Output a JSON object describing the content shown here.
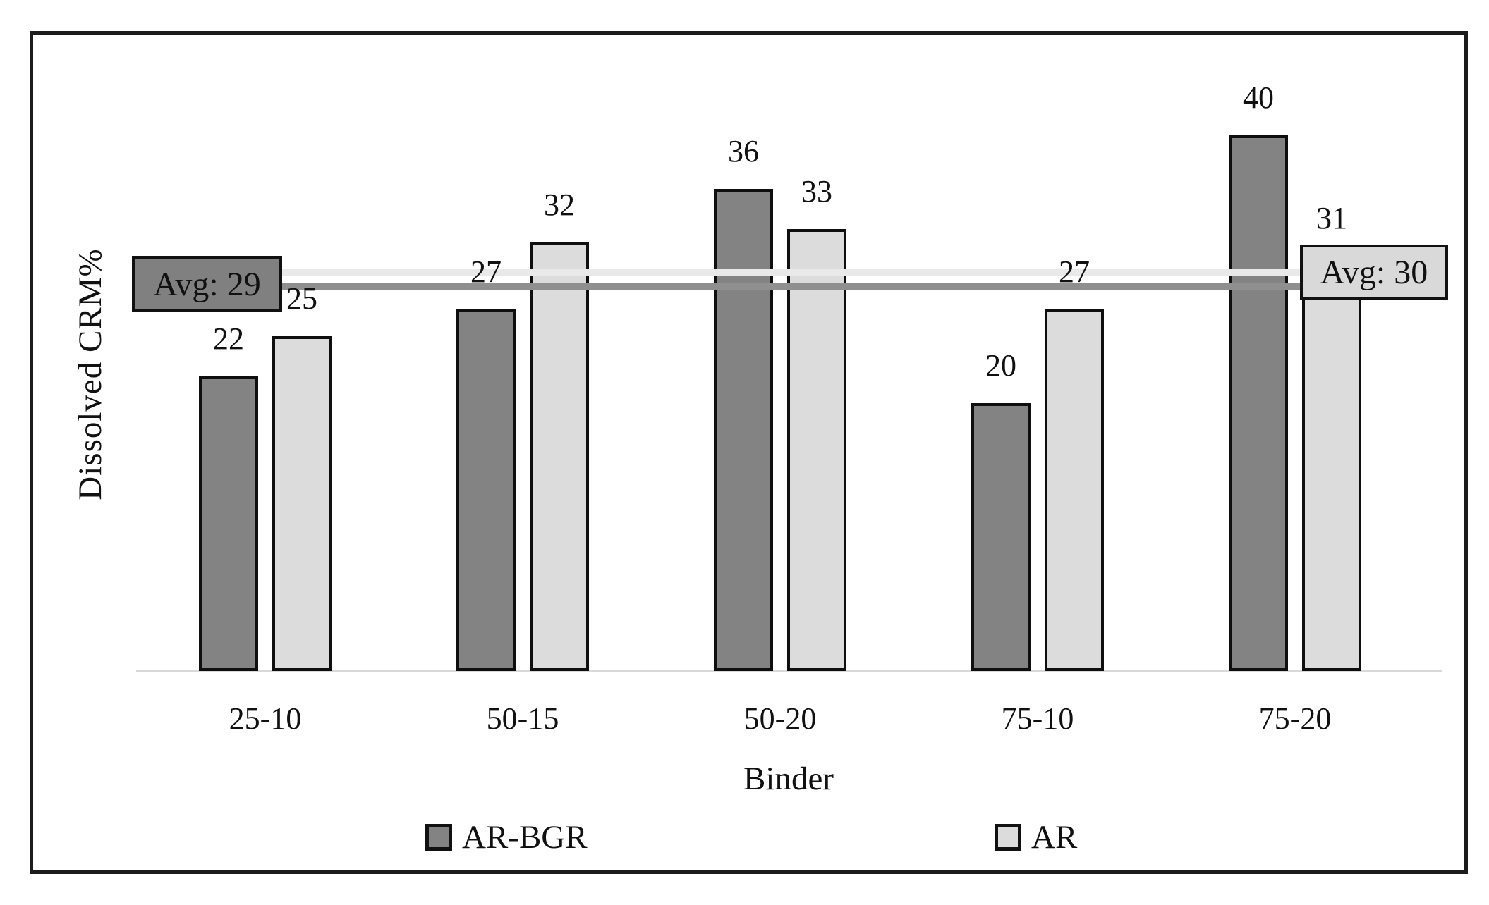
{
  "chart_data": {
    "type": "bar",
    "categories": [
      "25-10",
      "50-15",
      "50-20",
      "75-10",
      "75-20"
    ],
    "series": [
      {
        "name": "AR-BGR",
        "values": [
          22,
          27,
          36,
          20,
          40
        ],
        "color": "#838383",
        "avg": 29,
        "avg_label": "Avg: 29",
        "avg_line_color": "#8f8f8f",
        "avg_box_fill": "#808080"
      },
      {
        "name": "AR",
        "values": [
          25,
          32,
          33,
          27,
          31
        ],
        "color": "#dcdcdc",
        "avg": 30,
        "avg_label": "Avg: 30",
        "avg_line_color": "#e9e9e9",
        "avg_box_fill": "#d9d9d9"
      }
    ],
    "title": "",
    "xlabel": "Binder",
    "ylabel": "Dissolved CRM%",
    "ylim": [
      0,
      48
    ],
    "grid": false,
    "legend_position": "bottom",
    "bar_border_color": "#0f0f0f",
    "axis_line_color": "#d9d9d9"
  }
}
